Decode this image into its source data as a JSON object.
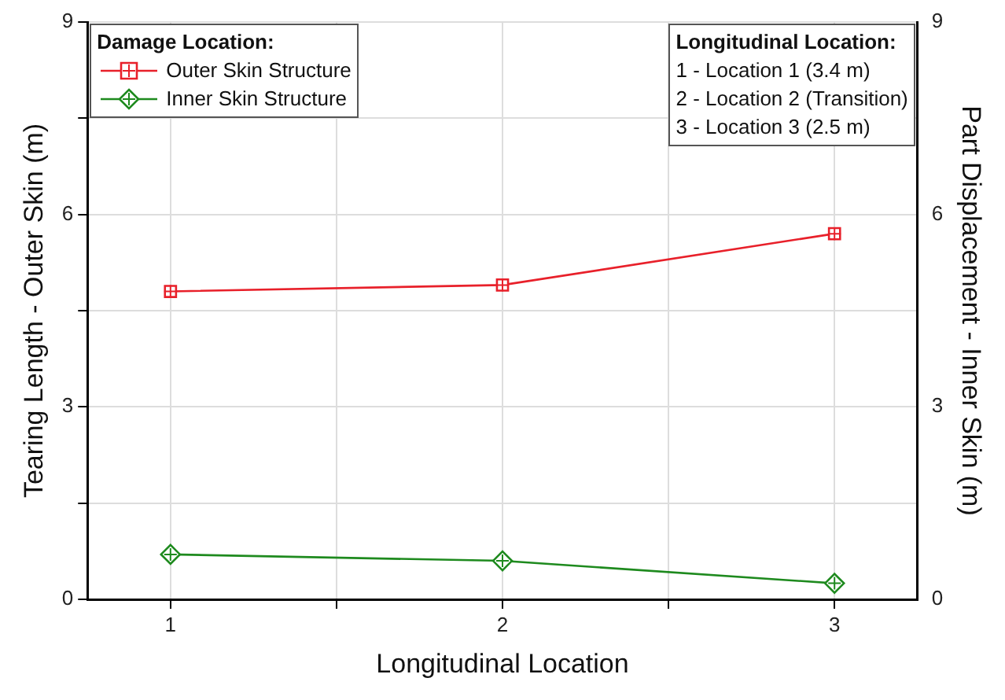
{
  "chart_data": {
    "type": "line",
    "xlabel": "Longitudinal Location",
    "ylabel": "Tearing Length - Outer Skin (m)",
    "y2label": "Part Displacement - Inner Skin (m)",
    "legend_title": "Damage Location:",
    "x": [
      1,
      2,
      3
    ],
    "series": [
      {
        "name": "Outer Skin Structure",
        "color": "#e8202a",
        "values": [
          4.8,
          4.9,
          5.7
        ],
        "marker": "square"
      },
      {
        "name": "Inner Skin Structure",
        "color": "#1e8a1e",
        "values": [
          0.7,
          0.6,
          0.25
        ],
        "marker": "diamond"
      }
    ],
    "xlim": [
      0.75,
      3.25
    ],
    "xticks": [
      1,
      {
        "value": 1.5,
        "label": null
      },
      2,
      {
        "value": 2.5,
        "label": null
      },
      3
    ],
    "ylim": [
      0,
      9
    ],
    "yticks": [
      0,
      {
        "value": 1.5,
        "label": null
      },
      3,
      {
        "value": 4.5,
        "label": null
      },
      6,
      {
        "value": 7.5,
        "label": null
      },
      9
    ],
    "y2lim": [
      0,
      9
    ],
    "y2ticks": [
      0,
      3,
      6,
      9
    ],
    "grid": true,
    "legend": "top left",
    "line_style": "solid",
    "annotations": [
      "Longitudinal Location:",
      "1 - Location 1 (3.4 m)",
      "2 - Location 2 (Transition)",
      "3 - Location 3 (2.5 m)"
    ]
  }
}
